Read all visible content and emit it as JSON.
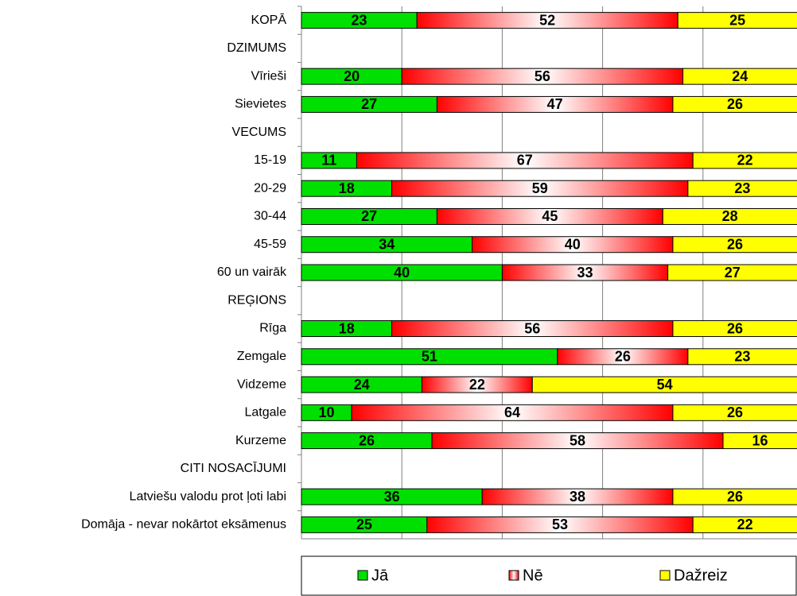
{
  "chart_data": {
    "type": "stacked-bar-horizontal",
    "categories": [
      "KOPĀ",
      "DZIMUMS",
      "Vīrieši",
      "Sievietes",
      "VECUMS",
      "15-19",
      "20-29",
      "30-44",
      "45-59",
      "60 un vairāk",
      "REĢIONS",
      "Rīga",
      "Zemgale",
      "Vidzeme",
      "Latgale",
      "Kurzeme",
      "CITI NOSACĪJUMI",
      "Latviešu valodu prot ļoti labi",
      "Domāja - nevar nokārtot eksāmenus"
    ],
    "series": [
      {
        "name": "Jā",
        "color": "#00e000",
        "values": [
          23,
          null,
          20,
          27,
          null,
          11,
          18,
          27,
          34,
          40,
          null,
          18,
          51,
          24,
          10,
          26,
          null,
          36,
          25
        ]
      },
      {
        "name": "Nē",
        "color": "#ff0000",
        "gradient": true,
        "values": [
          52,
          null,
          56,
          47,
          null,
          67,
          59,
          45,
          40,
          33,
          null,
          56,
          26,
          22,
          64,
          58,
          null,
          38,
          53
        ]
      },
      {
        "name": "Dažreiz",
        "color": "#ffff00",
        "values": [
          25,
          null,
          24,
          26,
          null,
          22,
          23,
          28,
          26,
          27,
          null,
          26,
          23,
          54,
          26,
          16,
          null,
          26,
          22
        ]
      }
    ],
    "xlim": [
      0,
      100
    ],
    "xticks": [
      0,
      20,
      40,
      60,
      80,
      100
    ],
    "grid": true,
    "legend": "bottom"
  }
}
